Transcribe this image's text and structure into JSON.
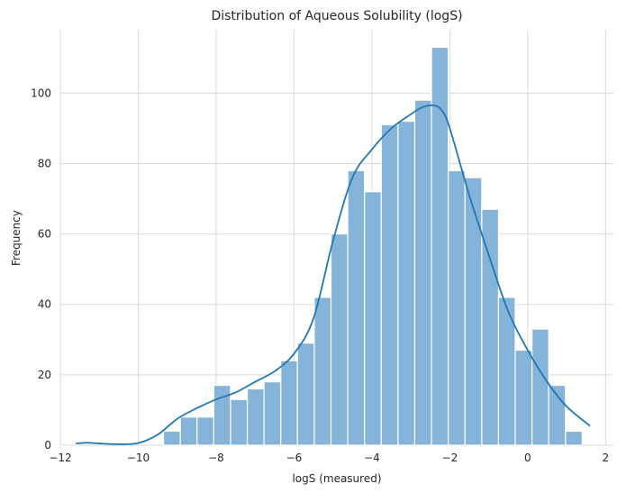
{
  "chart_data": {
    "type": "bar",
    "title": "Distribution of Aqueous Solubility (logS)",
    "xlabel": "logS (measured)",
    "ylabel": "Frequency",
    "xlim": [
      -12.0,
      2.2
    ],
    "ylim": [
      0,
      118
    ],
    "grid": true,
    "x_ticks": [
      -12,
      -10,
      -8,
      -6,
      -4,
      -2,
      0,
      2
    ],
    "y_ticks": [
      0,
      20,
      40,
      60,
      80,
      100
    ],
    "x_tick_labels": [
      "−12",
      "−10",
      "−8",
      "−6",
      "−4",
      "−2",
      "0",
      "2"
    ],
    "y_tick_labels": [
      "0",
      "20",
      "40",
      "60",
      "80",
      "100"
    ],
    "bar_color": "#86b4d8",
    "line_color": "#1f77b4",
    "bin_width": 0.43,
    "bins": [
      {
        "x0": -9.35,
        "count": 4
      },
      {
        "x0": -8.92,
        "count": 8
      },
      {
        "x0": -8.49,
        "count": 8
      },
      {
        "x0": -8.06,
        "count": 17
      },
      {
        "x0": -7.63,
        "count": 13
      },
      {
        "x0": -7.2,
        "count": 16
      },
      {
        "x0": -6.77,
        "count": 18
      },
      {
        "x0": -6.34,
        "count": 24
      },
      {
        "x0": -5.91,
        "count": 29
      },
      {
        "x0": -5.48,
        "count": 42
      },
      {
        "x0": -5.05,
        "count": 60
      },
      {
        "x0": -4.62,
        "count": 78
      },
      {
        "x0": -4.19,
        "count": 72
      },
      {
        "x0": -3.76,
        "count": 91
      },
      {
        "x0": -3.33,
        "count": 92
      },
      {
        "x0": -2.9,
        "count": 98
      },
      {
        "x0": -2.47,
        "count": 113
      },
      {
        "x0": -2.04,
        "count": 78
      },
      {
        "x0": -1.61,
        "count": 76
      },
      {
        "x0": -1.18,
        "count": 67
      },
      {
        "x0": -0.75,
        "count": 42
      },
      {
        "x0": -0.32,
        "count": 27
      },
      {
        "x0": 0.11,
        "count": 33
      },
      {
        "x0": 0.54,
        "count": 17
      },
      {
        "x0": 0.97,
        "count": 4
      }
    ],
    "kde": {
      "x": [
        -11.6,
        -11.3,
        -11.0,
        -10.5,
        -10.0,
        -9.5,
        -9.0,
        -8.5,
        -8.0,
        -7.5,
        -7.0,
        -6.5,
        -6.0,
        -5.5,
        -5.0,
        -4.5,
        -4.0,
        -3.5,
        -3.0,
        -2.7,
        -2.4,
        -2.2,
        -2.0,
        -1.5,
        -1.0,
        -0.5,
        0.0,
        0.5,
        1.0,
        1.6
      ],
      "y": [
        0.5,
        0.7,
        0.5,
        0.3,
        0.6,
        3,
        7.5,
        10.5,
        13,
        15,
        18,
        21,
        26,
        36,
        58,
        76,
        84,
        90,
        94,
        96,
        96.5,
        95,
        90,
        71,
        54,
        38,
        27,
        18,
        11,
        5.5
      ]
    }
  }
}
